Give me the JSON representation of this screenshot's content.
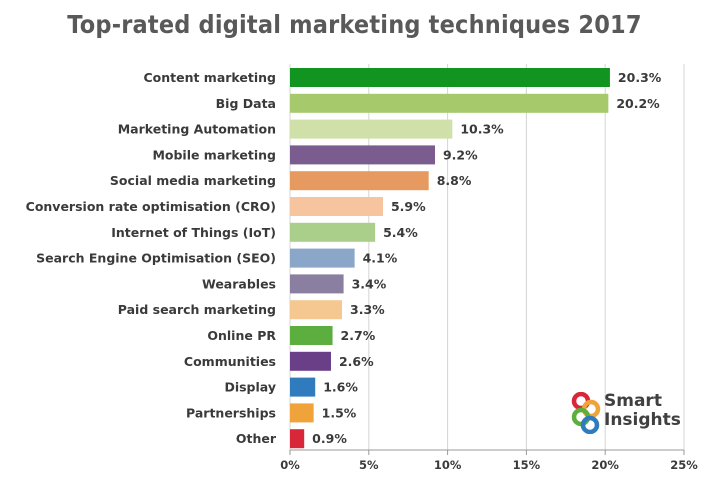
{
  "chart_data": {
    "type": "bar",
    "orientation": "horizontal",
    "title": "Top-rated digital marketing techniques 2017",
    "categories": [
      "Content marketing",
      "Big Data",
      "Marketing Automation",
      "Mobile marketing",
      "Social media marketing",
      "Conversion rate optimisation (CRO)",
      "Internet of Things (IoT)",
      "Search Engine Optimisation (SEO)",
      "Wearables",
      "Paid search marketing",
      "Online PR",
      "Communities",
      "Display",
      "Partnerships",
      "Other"
    ],
    "values": [
      20.3,
      20.2,
      10.3,
      9.2,
      8.8,
      5.9,
      5.4,
      4.1,
      3.4,
      3.3,
      2.7,
      2.6,
      1.6,
      1.5,
      0.9
    ],
    "value_labels": [
      "20.3%",
      "20.2%",
      "10.3%",
      "9.2%",
      "8.8%",
      "5.9%",
      "5.4%",
      "4.1%",
      "3.4%",
      "3.3%",
      "2.7%",
      "2.6%",
      "1.6%",
      "1.5%",
      "0.9%"
    ],
    "colors": [
      "#129421",
      "#a5c96b",
      "#cfe0a8",
      "#7a5c8f",
      "#e69a60",
      "#f7c4a0",
      "#aacf8a",
      "#8aa7c9",
      "#8a7fa0",
      "#f4c890",
      "#5cae3f",
      "#6b3f88",
      "#2f7bbd",
      "#f0a33a",
      "#d9273a"
    ],
    "x_ticks": [
      0,
      5,
      10,
      15,
      20,
      25
    ],
    "x_tick_labels": [
      "0%",
      "5%",
      "10%",
      "15%",
      "20%",
      "25%"
    ],
    "xlim": [
      0,
      25
    ],
    "xlabel": "",
    "ylabel": "",
    "grid": true
  },
  "logo": {
    "line1": "Smart",
    "line2": "Insights"
  }
}
